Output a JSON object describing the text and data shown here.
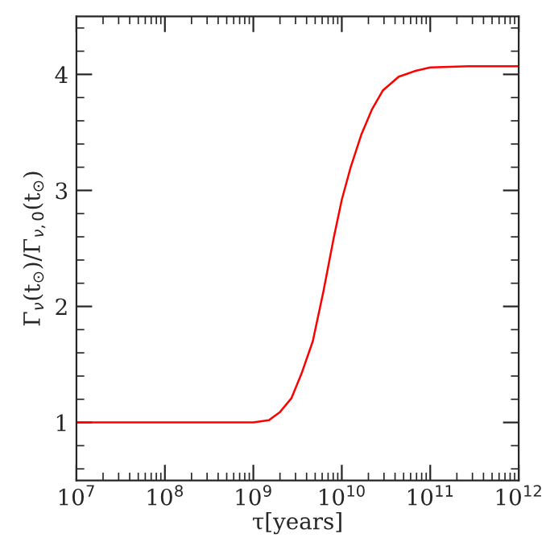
{
  "chart_data": {
    "type": "line",
    "xlabel": "τ[years]",
    "ylabel": "Γ$_{ν}$(t$_{⊙}$)/Γ$_{ν,0}$(t$_{⊙}$)",
    "x": [
      10000000.0,
      100000000.0,
      1000000000.0,
      1500000000.0,
      2000000000.0,
      2700000000.0,
      3500000000.0,
      4700000000.0,
      6200000000.0,
      8100000000.0,
      10000000000.0,
      12600000000.0,
      16600000000.0,
      22000000000.0,
      29000000000.0,
      44000000000.0,
      68000000000.0,
      100000000000.0,
      270000000000.0,
      1000000000000.0
    ],
    "series": [
      {
        "color": "#ff0000",
        "values": [
          1.0,
          1.0,
          1.0,
          1.02,
          1.09,
          1.21,
          1.42,
          1.7,
          2.13,
          2.59,
          2.92,
          3.2,
          3.48,
          3.7,
          3.86,
          3.98,
          4.03,
          4.06,
          4.07,
          4.07
        ]
      }
    ],
    "log": "x",
    "xlim": [
      10000000.0,
      1000000000000.0
    ],
    "ylim": [
      0.5,
      4.5
    ],
    "xticks": [
      {
        "value": 10000000.0,
        "label": "10$^{7}$"
      },
      {
        "value": 100000000.0,
        "label": "10$^{8}$"
      },
      {
        "value": 1000000000.0,
        "label": "10$^{9}$"
      },
      {
        "value": 10000000000.0,
        "label": "10$^{10}$"
      },
      {
        "value": 100000000000.0,
        "label": "10$^{11}$"
      },
      {
        "value": 1000000000000.0,
        "label": "10$^{12}$"
      }
    ],
    "yticks": [
      1,
      2,
      3,
      4
    ],
    "grid": false,
    "legend": false,
    "marker": "none",
    "line_style": "solid"
  }
}
